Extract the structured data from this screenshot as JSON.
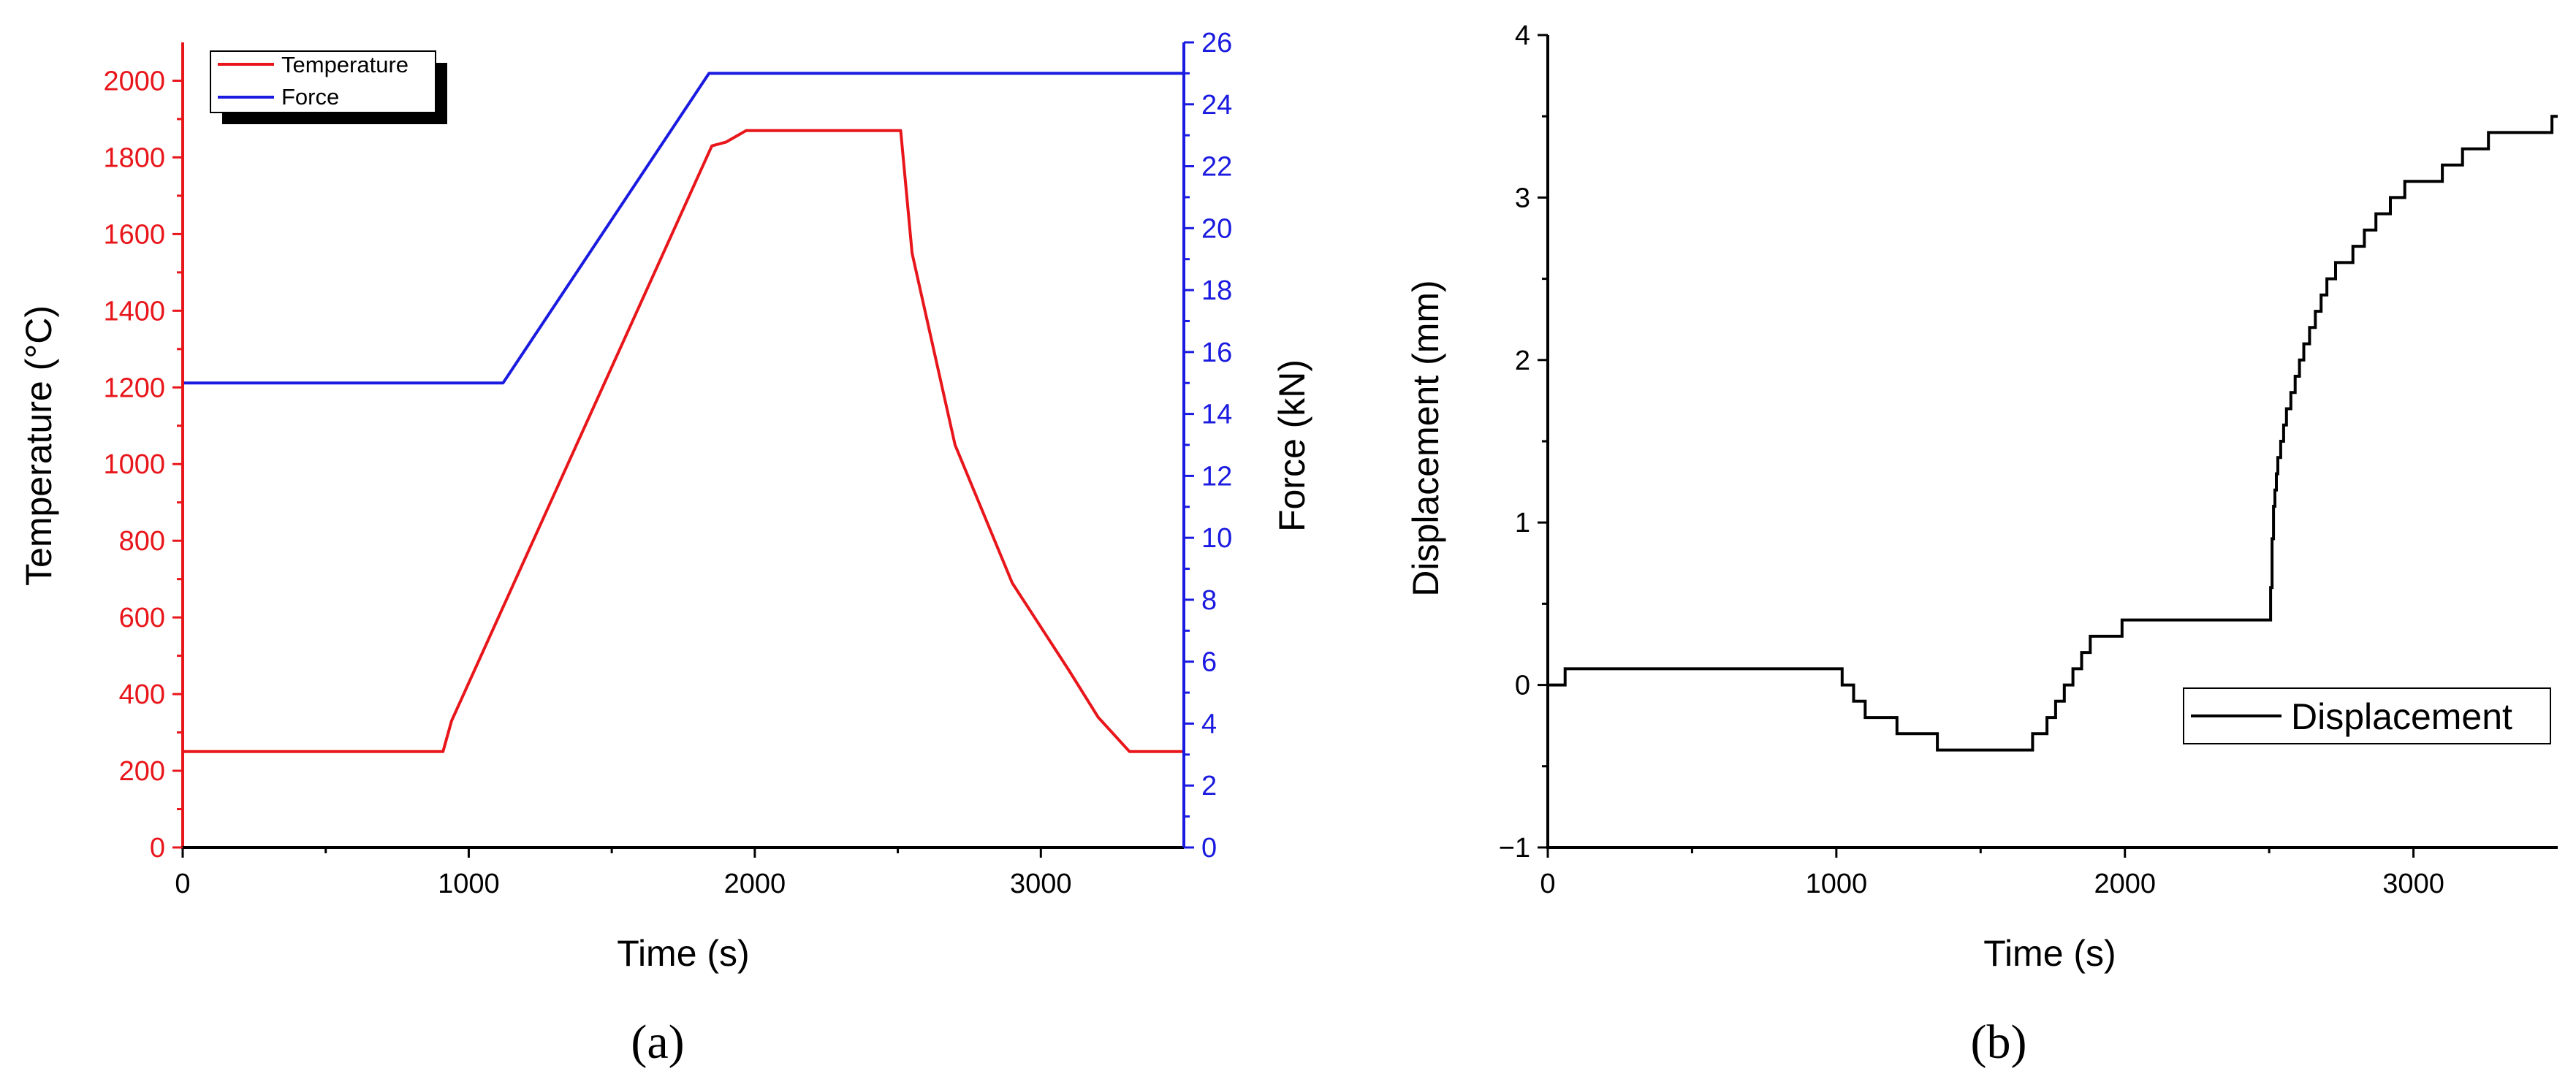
{
  "chart_data": [
    {
      "panel_label": "(a)",
      "type": "line",
      "xlabel": "Time (s)",
      "ylabel": "Temperature (°C)",
      "y2label": "Force (kN)",
      "xlim": [
        0,
        3500
      ],
      "ylim": [
        0,
        2100
      ],
      "y2lim": [
        0,
        26
      ],
      "xticks": [
        0,
        1000,
        2000,
        3000
      ],
      "yticks": [
        0,
        200,
        400,
        600,
        800,
        1000,
        1200,
        1400,
        1600,
        1800,
        2000
      ],
      "y2ticks": [
        0,
        2,
        4,
        6,
        8,
        10,
        12,
        14,
        16,
        18,
        20,
        22,
        24,
        26
      ],
      "legend_position": "top-left",
      "series": [
        {
          "name": "Temperature",
          "axis": "left",
          "color": "#e8161b",
          "x": [
            0,
            910,
            940,
            1850,
            1900,
            1970,
            2510,
            2550,
            2700,
            2900,
            3100,
            3200,
            3310,
            3500
          ],
          "y": [
            250,
            250,
            330,
            1830,
            1840,
            1870,
            1870,
            1550,
            1050,
            690,
            460,
            340,
            250,
            250
          ]
        },
        {
          "name": "Force",
          "axis": "right",
          "color": "#1a1ae0",
          "x": [
            0,
            1120,
            1840,
            3500
          ],
          "y": [
            15,
            15,
            25,
            25
          ]
        }
      ]
    },
    {
      "panel_label": "(b)",
      "type": "line",
      "xlabel": "Time (s)",
      "ylabel": "Displacement (mm)",
      "xlim": [
        0,
        3500
      ],
      "ylim": [
        -1,
        4
      ],
      "xticks": [
        0,
        1000,
        2000,
        3000
      ],
      "yticks": [
        -1,
        0,
        1,
        2,
        3,
        4
      ],
      "legend_position": "lower-right",
      "series": [
        {
          "name": "Displacement",
          "color": "#000000",
          "step": true,
          "x": [
            0,
            60,
            1020,
            1060,
            1100,
            1150,
            1210,
            1350,
            1680,
            1730,
            1760,
            1790,
            1820,
            1850,
            1880,
            1910,
            1990,
            2505,
            2510,
            2515,
            2520,
            2525,
            2530,
            2540,
            2550,
            2560,
            2575,
            2590,
            2605,
            2620,
            2640,
            2660,
            2680,
            2700,
            2730,
            2760,
            2790,
            2830,
            2870,
            2920,
            2970,
            3030,
            3100,
            3170,
            3260,
            3380,
            3480
          ],
          "y": [
            0,
            0.1,
            0,
            -0.1,
            -0.2,
            -0.2,
            -0.3,
            -0.4,
            -0.3,
            -0.2,
            -0.1,
            0,
            0.1,
            0.2,
            0.3,
            0.3,
            0.4,
            0.6,
            0.9,
            1.1,
            1.2,
            1.3,
            1.4,
            1.5,
            1.6,
            1.7,
            1.8,
            1.9,
            2.0,
            2.1,
            2.2,
            2.3,
            2.4,
            2.5,
            2.6,
            2.6,
            2.7,
            2.8,
            2.9,
            3.0,
            3.1,
            3.1,
            3.2,
            3.3,
            3.4,
            3.4,
            3.5
          ]
        }
      ]
    }
  ]
}
